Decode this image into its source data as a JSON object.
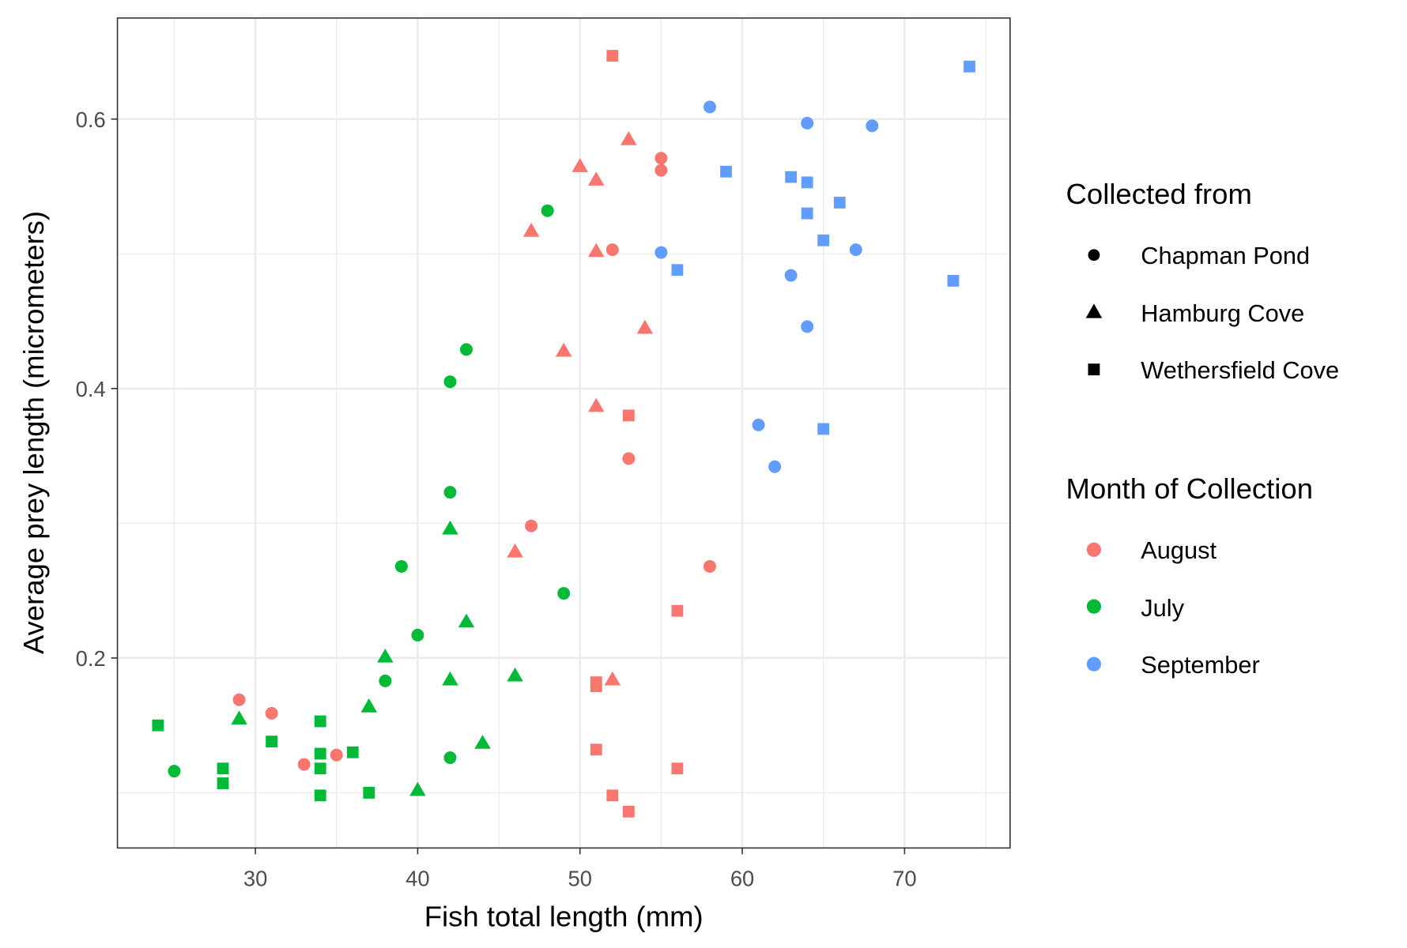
{
  "chart_data": {
    "type": "scatter",
    "title": "",
    "xlabel": "Fish total length (mm)",
    "ylabel": "Average prey length (micrometers)",
    "xlim": [
      21.5,
      76.5
    ],
    "ylim": [
      0.059,
      0.675
    ],
    "xticks": [
      30,
      40,
      50,
      60,
      70
    ],
    "xtick_labels": [
      "30",
      "40",
      "50",
      "60",
      "70"
    ],
    "yticks": [
      0.2,
      0.4,
      0.6
    ],
    "ytick_labels": [
      "0.2",
      "0.4",
      "0.6"
    ],
    "grid": true,
    "legend_position": "right",
    "shape_legend": {
      "title": "Collected from",
      "entries": [
        {
          "label": "Chapman Pond",
          "shape": "circle"
        },
        {
          "label": "Hamburg Cove",
          "shape": "triangle"
        },
        {
          "label": "Wethersfield Cove",
          "shape": "square"
        }
      ]
    },
    "color_legend": {
      "title": "Month of Collection",
      "entries": [
        {
          "label": "August",
          "color": "#F8766D"
        },
        {
          "label": "July",
          "color": "#00BA38"
        },
        {
          "label": "September",
          "color": "#619CFF"
        }
      ]
    },
    "series": [
      {
        "month": "September",
        "site": "Chapman Pond",
        "points": [
          [
            58,
            0.609
          ],
          [
            64,
            0.597
          ],
          [
            68,
            0.595
          ],
          [
            55,
            0.501
          ],
          [
            67,
            0.503
          ],
          [
            63,
            0.484
          ],
          [
            64,
            0.446
          ],
          [
            61,
            0.373
          ],
          [
            62,
            0.342
          ]
        ]
      },
      {
        "month": "September",
        "site": "Wethersfield Cove",
        "points": [
          [
            74,
            0.639
          ],
          [
            59,
            0.561
          ],
          [
            63,
            0.557
          ],
          [
            64,
            0.553
          ],
          [
            66,
            0.538
          ],
          [
            64,
            0.53
          ],
          [
            65,
            0.51
          ],
          [
            56,
            0.488
          ],
          [
            73,
            0.48
          ],
          [
            65,
            0.37
          ]
        ]
      },
      {
        "month": "August",
        "site": "Wethersfield Cove",
        "points": [
          [
            52,
            0.647
          ],
          [
            53,
            0.38
          ],
          [
            56,
            0.235
          ],
          [
            51,
            0.182
          ],
          [
            51,
            0.179
          ],
          [
            51,
            0.132
          ],
          [
            56,
            0.118
          ],
          [
            52,
            0.098
          ],
          [
            53,
            0.086
          ]
        ]
      },
      {
        "month": "August",
        "site": "Hamburg Cove",
        "points": [
          [
            53,
            0.585
          ],
          [
            50,
            0.565
          ],
          [
            51,
            0.555
          ],
          [
            47,
            0.517
          ],
          [
            51,
            0.502
          ],
          [
            54,
            0.445
          ],
          [
            49,
            0.428
          ],
          [
            51,
            0.387
          ],
          [
            46,
            0.279
          ],
          [
            52,
            0.184
          ]
        ]
      },
      {
        "month": "August",
        "site": "Chapman Pond",
        "points": [
          [
            55,
            0.571
          ],
          [
            55,
            0.562
          ],
          [
            52,
            0.503
          ],
          [
            53,
            0.348
          ],
          [
            47,
            0.298
          ],
          [
            58,
            0.268
          ],
          [
            29,
            0.169
          ],
          [
            31,
            0.159
          ],
          [
            33,
            0.121
          ],
          [
            35,
            0.128
          ]
        ]
      },
      {
        "month": "July",
        "site": "Chapman Pond",
        "points": [
          [
            48,
            0.532
          ],
          [
            43,
            0.429
          ],
          [
            42,
            0.405
          ],
          [
            42,
            0.323
          ],
          [
            39,
            0.268
          ],
          [
            49,
            0.248
          ],
          [
            40,
            0.217
          ],
          [
            38,
            0.183
          ],
          [
            42,
            0.126
          ],
          [
            25,
            0.116
          ]
        ]
      },
      {
        "month": "July",
        "site": "Hamburg Cove",
        "points": [
          [
            42,
            0.296
          ],
          [
            43,
            0.227
          ],
          [
            38,
            0.201
          ],
          [
            46,
            0.187
          ],
          [
            42,
            0.184
          ],
          [
            37,
            0.164
          ],
          [
            29,
            0.155
          ],
          [
            44,
            0.137
          ],
          [
            40,
            0.102
          ]
        ]
      },
      {
        "month": "July",
        "site": "Wethersfield Cove",
        "points": [
          [
            24,
            0.15
          ],
          [
            34,
            0.153
          ],
          [
            31,
            0.138
          ],
          [
            34,
            0.129
          ],
          [
            36,
            0.13
          ],
          [
            34,
            0.118
          ],
          [
            28,
            0.118
          ],
          [
            28,
            0.107
          ],
          [
            34,
            0.098
          ],
          [
            37,
            0.1
          ]
        ]
      }
    ]
  }
}
